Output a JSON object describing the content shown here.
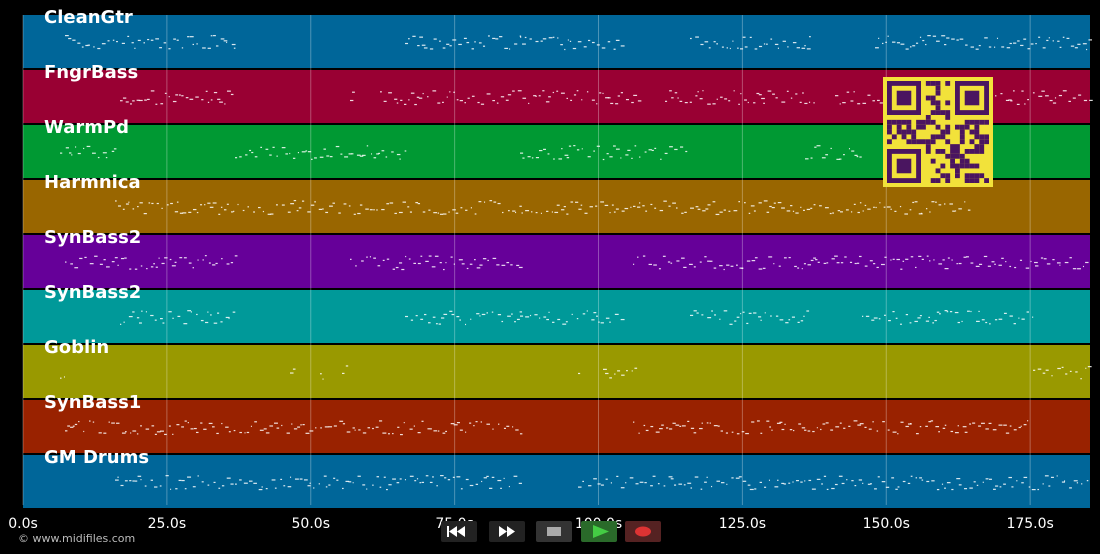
{
  "tracks": [
    {
      "name": "CleanGtr",
      "color": "#006699"
    },
    {
      "name": "FngrBass",
      "color": "#990033"
    },
    {
      "name": "WarmPd",
      "color": "#009933"
    },
    {
      "name": "Harmnica",
      "color": "#996600"
    },
    {
      "name": "SynBass2",
      "color": "#660099"
    },
    {
      "name": "SynBass2",
      "color": "#009999"
    },
    {
      "name": "Goblin",
      "color": "#999900"
    },
    {
      "name": "SynBass1",
      "color": "#992200"
    },
    {
      "name": "GM Drums",
      "color": "#006699"
    }
  ],
  "time_axis": {
    "xlim": [
      0,
      185.4
    ],
    "xticks": [
      {
        "value": 0,
        "label": "0.0s"
      },
      {
        "value": 25,
        "label": "25.0s"
      },
      {
        "value": 50,
        "label": "50.0s"
      },
      {
        "value": 75,
        "label": "75.0s"
      },
      {
        "value": 100,
        "label": "100.0s"
      },
      {
        "value": 125,
        "label": "125.0s"
      },
      {
        "value": 150,
        "label": "150.0s"
      },
      {
        "value": 175,
        "label": "175.0s"
      }
    ]
  },
  "footer": {
    "copyright": "© www.midifiles.com"
  }
}
